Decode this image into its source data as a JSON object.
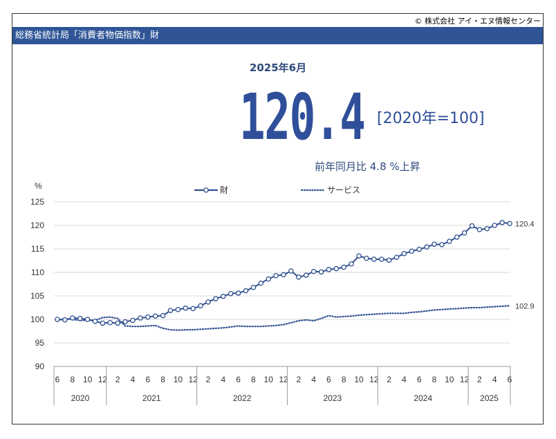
{
  "header": {
    "copyright": "© 株式会社 アイ・エヌ情報センター",
    "title": "総務省統計局「消費者物価指数」財"
  },
  "headline": {
    "period": "2025年6月",
    "value": "120.4",
    "base": "[2020年=100]",
    "yoy": "前年同月比  4.8 %上昇"
  },
  "colors": {
    "accent": "#2f5597",
    "series_goods": "#2f4f8f",
    "series_services": "#2f4f8f"
  },
  "chart_data": {
    "type": "line",
    "ylabel": "%",
    "ylim": [
      90,
      125
    ],
    "yticks": [
      90,
      95,
      100,
      105,
      110,
      115,
      120,
      125
    ],
    "grid": true,
    "legend_position": "top-center",
    "x_month_labels": [
      "6",
      "8",
      "10",
      "12",
      "2",
      "4",
      "6",
      "8",
      "10",
      "12",
      "2",
      "4",
      "6",
      "8",
      "10",
      "12",
      "2",
      "4",
      "6",
      "8",
      "10",
      "12",
      "2",
      "4",
      "6",
      "8",
      "10",
      "12",
      "2",
      "4",
      "6"
    ],
    "x_year_labels": [
      "2020",
      "2021",
      "2022",
      "2023",
      "2024",
      "2025"
    ],
    "x_start": "2020-06",
    "series": [
      {
        "name": "財",
        "style": "solid-markers",
        "end_label": "120.4",
        "values": [
          100.0,
          99.9,
          100.3,
          100.2,
          100.0,
          99.6,
          99.2,
          99.3,
          99.2,
          99.5,
          99.8,
          100.3,
          100.5,
          100.7,
          100.8,
          101.9,
          102.1,
          102.4,
          102.3,
          102.9,
          103.7,
          104.4,
          104.9,
          105.5,
          105.6,
          106.1,
          106.8,
          107.7,
          108.6,
          109.3,
          109.5,
          110.3,
          109.0,
          109.4,
          110.2,
          110.1,
          110.6,
          110.8,
          111.1,
          111.8,
          113.5,
          113.0,
          112.8,
          112.8,
          112.6,
          113.2,
          114.0,
          114.5,
          114.9,
          115.4,
          116.0,
          115.9,
          116.6,
          117.5,
          118.4,
          119.9,
          119.1,
          119.3,
          120.0,
          120.6,
          120.4
        ]
      },
      {
        "name": "サービス",
        "style": "dotted",
        "end_label": "102.9",
        "values": [
          99.9,
          100.1,
          100.0,
          99.8,
          99.8,
          99.8,
          100.4,
          100.5,
          100.2,
          98.6,
          98.5,
          98.5,
          98.6,
          98.7,
          98.1,
          97.8,
          97.7,
          97.8,
          97.8,
          97.9,
          98.0,
          98.1,
          98.2,
          98.4,
          98.6,
          98.5,
          98.5,
          98.5,
          98.6,
          98.7,
          98.9,
          99.3,
          99.7,
          99.9,
          99.7,
          100.2,
          100.8,
          100.5,
          100.6,
          100.7,
          100.9,
          101.0,
          101.1,
          101.2,
          101.3,
          101.3,
          101.3,
          101.5,
          101.6,
          101.8,
          102.0,
          102.1,
          102.2,
          102.3,
          102.4,
          102.5,
          102.5,
          102.6,
          102.7,
          102.8,
          102.9
        ]
      }
    ]
  }
}
